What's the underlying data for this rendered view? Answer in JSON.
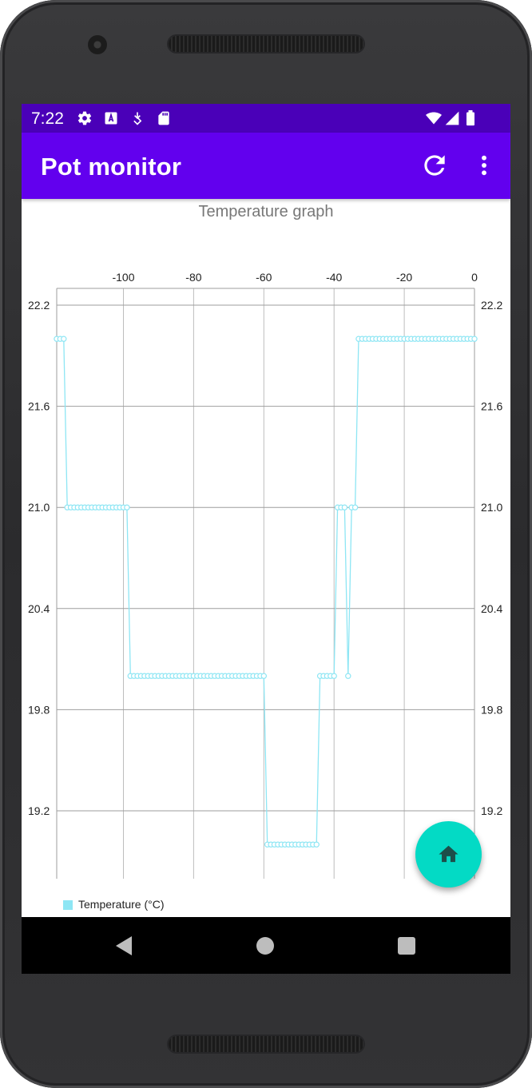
{
  "status_bar": {
    "time": "7:22",
    "icons_left": [
      "settings-icon",
      "accessibility-a-icon",
      "download-arrow-icon",
      "sd-card-icon"
    ],
    "icons_right": [
      "wifi-icon",
      "signal-icon",
      "battery-icon"
    ]
  },
  "app_bar": {
    "title": "Pot monitor",
    "actions": [
      "refresh-icon",
      "more-vert-icon"
    ],
    "color": "#6200ee",
    "status_color": "#4a00b8"
  },
  "fab": {
    "icon": "home-icon",
    "color": "#03dac5"
  },
  "chart_data": {
    "type": "line",
    "title": "Temperature graph",
    "series": [
      {
        "name": "Temperature (°C)",
        "color": "#8ee6f4",
        "x": [
          -119,
          -118,
          -117,
          -116,
          -115,
          -114,
          -113,
          -112,
          -111,
          -110,
          -109,
          -108,
          -107,
          -106,
          -105,
          -104,
          -103,
          -102,
          -101,
          -100,
          -99,
          -98,
          -97,
          -96,
          -95,
          -94,
          -93,
          -92,
          -91,
          -90,
          -89,
          -88,
          -87,
          -86,
          -85,
          -84,
          -83,
          -82,
          -81,
          -80,
          -79,
          -78,
          -77,
          -76,
          -75,
          -74,
          -73,
          -72,
          -71,
          -70,
          -69,
          -68,
          -67,
          -66,
          -65,
          -64,
          -63,
          -62,
          -61,
          -60,
          -59,
          -58,
          -57,
          -56,
          -55,
          -54,
          -53,
          -52,
          -51,
          -50,
          -49,
          -48,
          -47,
          -46,
          -45,
          -44,
          -43,
          -42,
          -41,
          -40,
          -39,
          -38,
          -37,
          -36,
          -35,
          -34,
          -33,
          -32,
          -31,
          -30,
          -29,
          -28,
          -27,
          -26,
          -25,
          -24,
          -23,
          -22,
          -21,
          -20,
          -19,
          -18,
          -17,
          -16,
          -15,
          -14,
          -13,
          -12,
          -11,
          -10,
          -9,
          -8,
          -7,
          -6,
          -5,
          -4,
          -3,
          -2,
          -1,
          0
        ],
        "y": [
          22.0,
          22.0,
          22.0,
          21.0,
          21.0,
          21.0,
          21.0,
          21.0,
          21.0,
          21.0,
          21.0,
          21.0,
          21.0,
          21.0,
          21.0,
          21.0,
          21.0,
          21.0,
          21.0,
          21.0,
          21.0,
          20.0,
          20.0,
          20.0,
          20.0,
          20.0,
          20.0,
          20.0,
          20.0,
          20.0,
          20.0,
          20.0,
          20.0,
          20.0,
          20.0,
          20.0,
          20.0,
          20.0,
          20.0,
          20.0,
          20.0,
          20.0,
          20.0,
          20.0,
          20.0,
          20.0,
          20.0,
          20.0,
          20.0,
          20.0,
          20.0,
          20.0,
          20.0,
          20.0,
          20.0,
          20.0,
          20.0,
          20.0,
          20.0,
          20.0,
          19.0,
          19.0,
          19.0,
          19.0,
          19.0,
          19.0,
          19.0,
          19.0,
          19.0,
          19.0,
          19.0,
          19.0,
          19.0,
          19.0,
          19.0,
          20.0,
          20.0,
          20.0,
          20.0,
          20.0,
          21.0,
          21.0,
          21.0,
          20.0,
          21.0,
          21.0,
          22.0,
          22.0,
          22.0,
          22.0,
          22.0,
          22.0,
          22.0,
          22.0,
          22.0,
          22.0,
          22.0,
          22.0,
          22.0,
          22.0,
          22.0,
          22.0,
          22.0,
          22.0,
          22.0,
          22.0,
          22.0,
          22.0,
          22.0,
          22.0,
          22.0,
          22.0,
          22.0,
          22.0,
          22.0,
          22.0,
          22.0,
          22.0,
          22.0,
          22.0
        ]
      }
    ],
    "x_ticks": [
      "-100",
      "-80",
      "-60",
      "-40",
      "-20",
      "0"
    ],
    "x_tick_values": [
      -100,
      -80,
      -60,
      -40,
      -20,
      0
    ],
    "y_ticks": [
      "22.2",
      "21.6",
      "21.0",
      "20.4",
      "19.8",
      "19.2"
    ],
    "y_tick_values": [
      22.2,
      21.6,
      21.0,
      20.4,
      19.8,
      19.2
    ],
    "xlim": [
      -119,
      0
    ],
    "ylim": [
      18.7,
      22.3
    ],
    "x_axis_position": "top",
    "y_axis": "both sides",
    "grid": true,
    "legend": "bottom-left",
    "legend_label": "Temperature (°C)"
  }
}
